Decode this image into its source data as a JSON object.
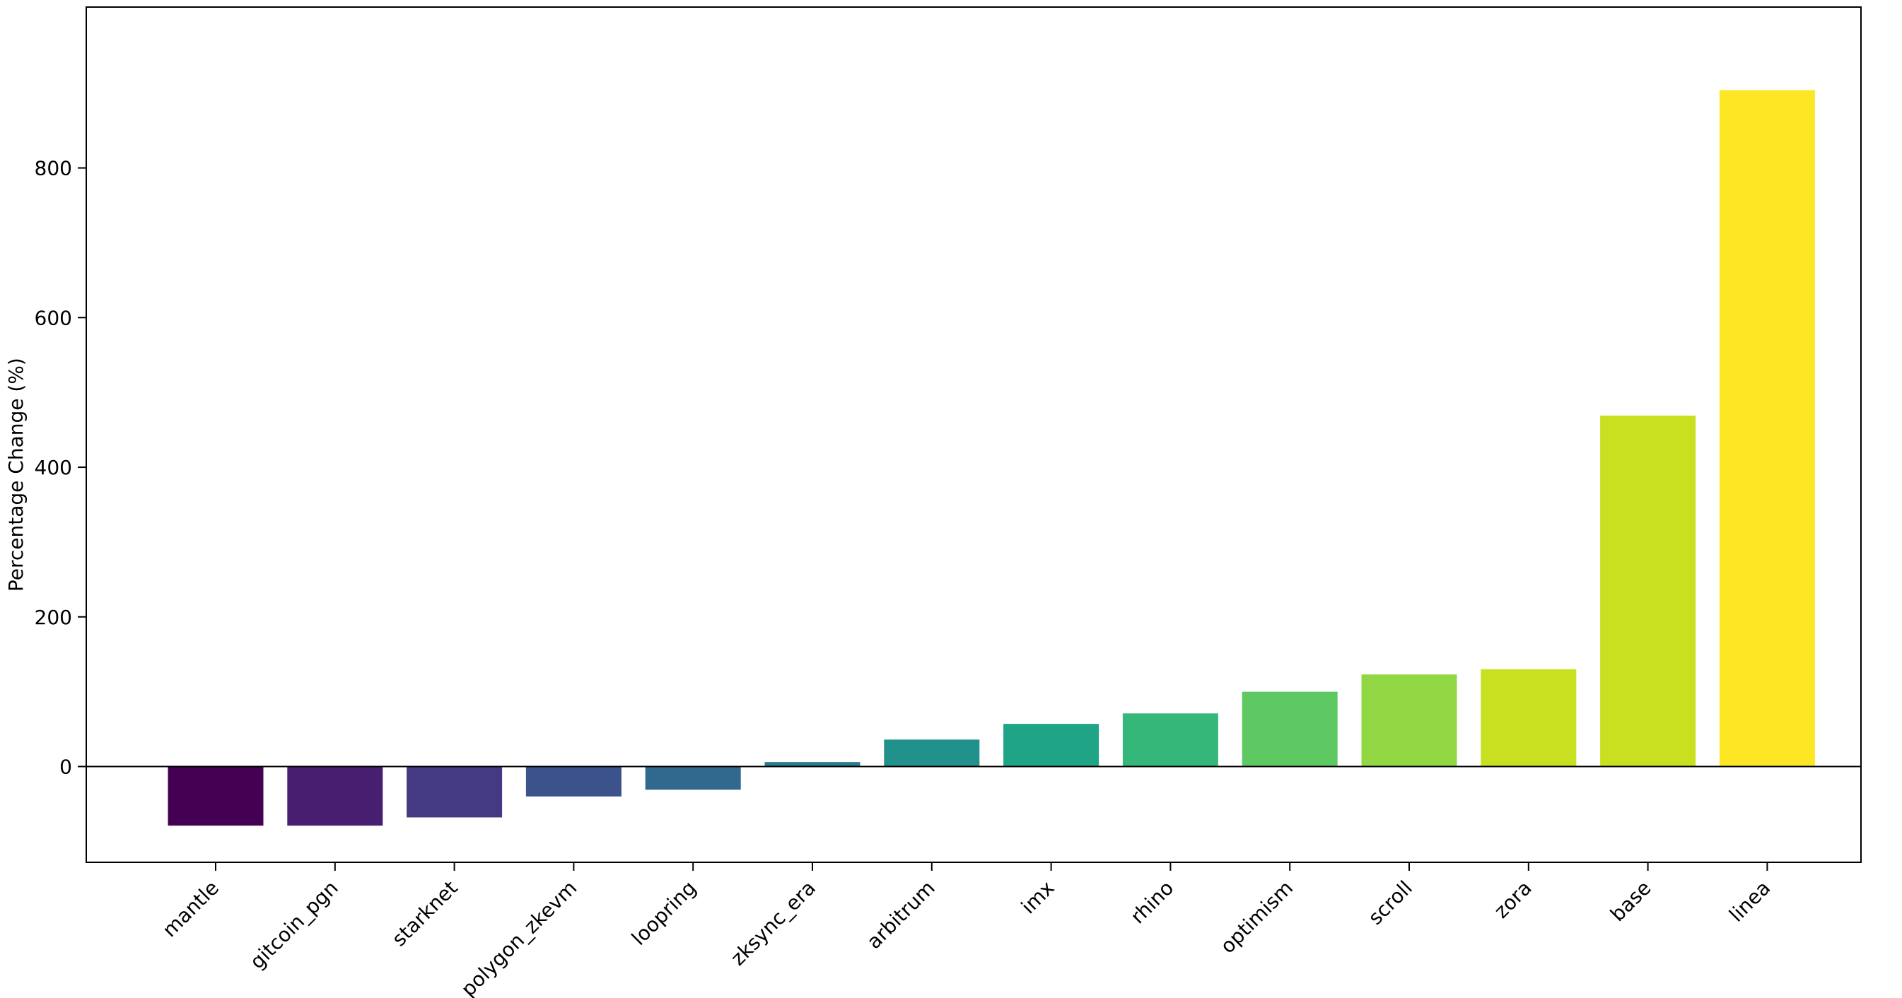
{
  "chart_data": {
    "type": "bar",
    "title": "",
    "xlabel": "",
    "ylabel": "Percentage Change (%)",
    "ylim": [
      -128,
      1015
    ],
    "yticks": [
      0,
      200,
      400,
      600,
      800
    ],
    "grid": false,
    "legend": "none",
    "zero_line": true,
    "categories": [
      "mantle",
      "gitcoin_pgn",
      "starknet",
      "polygon_zkevm",
      "loopring",
      "zksync_era",
      "arbitrum",
      "imx",
      "rhino",
      "optimism",
      "scroll",
      "zora",
      "base",
      "linea"
    ],
    "values": [
      -79,
      -79,
      -68,
      -40,
      -31,
      6,
      36,
      57,
      71,
      100,
      123,
      130,
      469,
      904
    ],
    "colors": [
      "#440154",
      "#481f70",
      "#443983",
      "#3b528b",
      "#31688e",
      "#287c8e",
      "#21918c",
      "#20a486",
      "#35b779",
      "#5ec962",
      "#90d743",
      "#c8e020",
      "#c9e020",
      "#fde725"
    ]
  }
}
